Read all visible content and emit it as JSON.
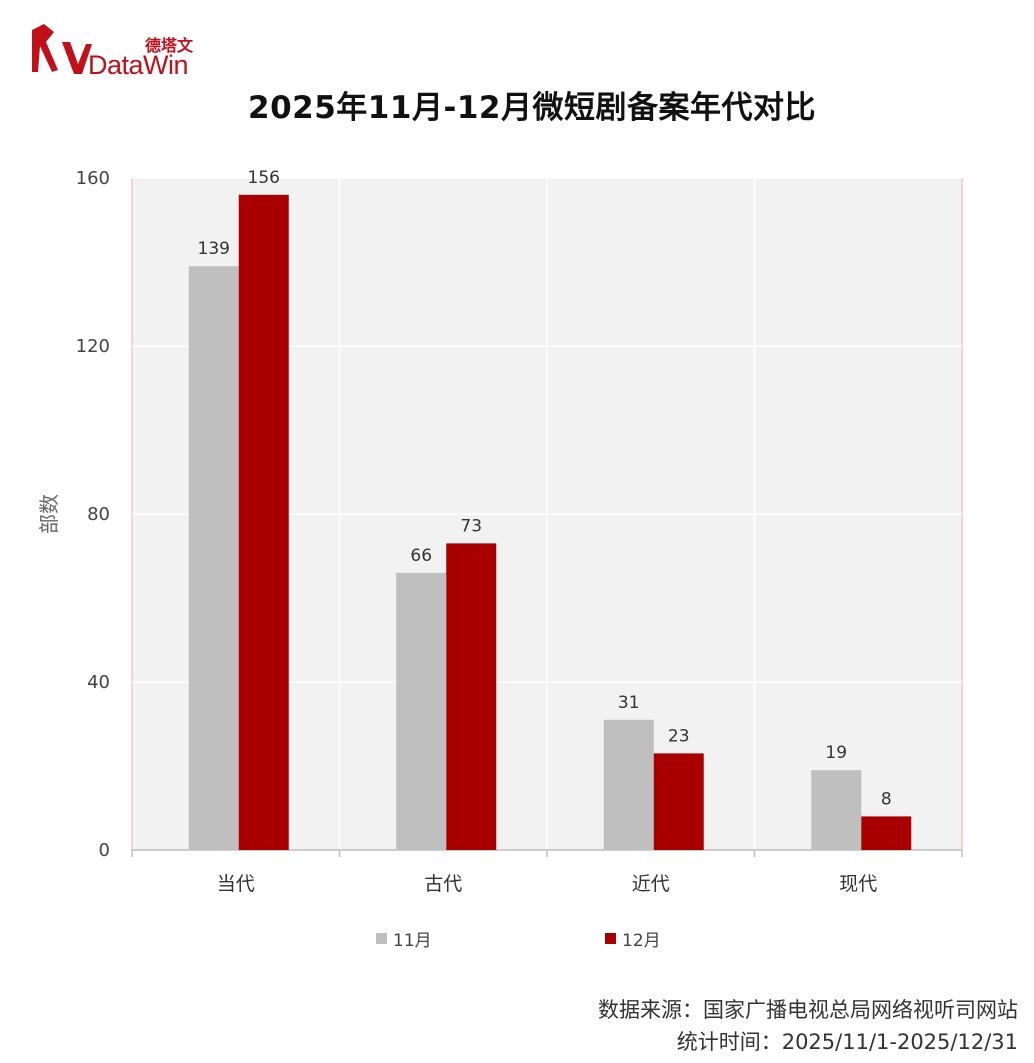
{
  "logo": {
    "brand_name": "DataWin",
    "brand_cn": "德塔文",
    "color": "#c0101a"
  },
  "chart_data": {
    "type": "bar",
    "title": "2025年11月-12月微短剧备案年代对比",
    "categories": [
      "当代",
      "古代",
      "近代",
      "现代"
    ],
    "series": [
      {
        "name": "11月",
        "values": [
          139,
          66,
          31,
          19
        ],
        "color": "#bfbfbf"
      },
      {
        "name": "12月",
        "values": [
          156,
          73,
          23,
          8
        ],
        "color": "#a80000"
      }
    ],
    "ylabel": "部数",
    "xlabel": "",
    "ylim": [
      0,
      160
    ],
    "yticks": [
      0,
      40,
      80,
      120,
      160
    ],
    "grid": true,
    "legend": "bottom",
    "plot_background": "#f2f2f2"
  },
  "footer": {
    "source": "数据来源：国家广播电视总局网络视听司网站",
    "period": "统计时间：2025/11/1-2025/12/31"
  }
}
